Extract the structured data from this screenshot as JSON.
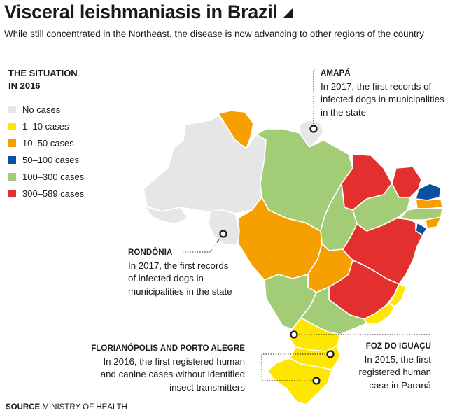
{
  "title": "Visceral leishmaniasis in Brazil",
  "subtitle": "While still concentrated in the Northeast, the disease is now advancing to other regions of the country",
  "legend": {
    "heading_line1": "THE SITUATION",
    "heading_line2": "IN 2016",
    "items": [
      {
        "label": "No cases",
        "color": "#e6e6e6"
      },
      {
        "label": "1–10 cases",
        "color": "#ffe600"
      },
      {
        "label": "10–50 cases",
        "color": "#f5a000"
      },
      {
        "label": "50–100 cases",
        "color": "#0a4fa0"
      },
      {
        "label": "100–300 cases",
        "color": "#a3cc77"
      },
      {
        "label": "300–589 cases",
        "color": "#e3302f"
      }
    ]
  },
  "annotations": {
    "amapa": {
      "heading": "AMAPÁ",
      "lines": [
        "In 2017, the first records of",
        "infected dogs in municipalities",
        "in the state"
      ]
    },
    "rondonia": {
      "heading": "RONDÔNIA",
      "lines": [
        "In 2017, the first records",
        "of infected dogs in",
        "municipalities in the state"
      ]
    },
    "floripa": {
      "heading": "FLORIANÓPOLIS AND PORTO ALEGRE",
      "lines": [
        "In 2016, the first registered human",
        "and canine cases without identified",
        "insect transmitters"
      ]
    },
    "foz": {
      "heading": "FOZ DO IGUAÇU",
      "lines": [
        "In 2015, the first",
        "registered human",
        "case in Paraná"
      ]
    }
  },
  "source": {
    "label": "SOURCE",
    "text": "MINISTRY OF HEALTH"
  }
}
